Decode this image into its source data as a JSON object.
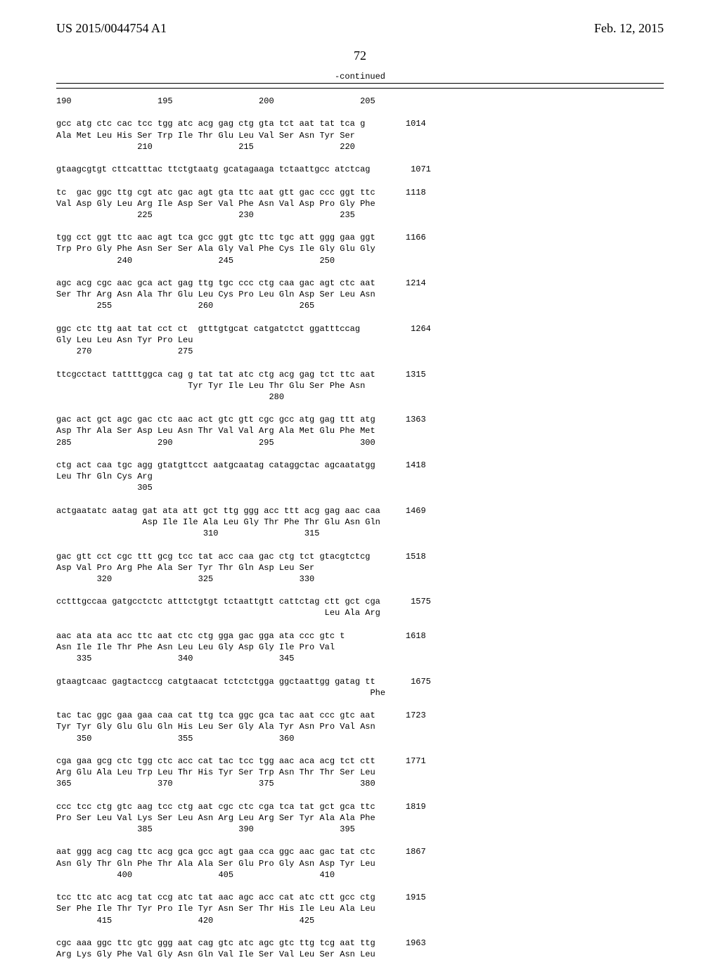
{
  "header": {
    "left": "US 2015/0044754 A1",
    "right": "Feb. 12, 2015"
  },
  "page_number": "72",
  "continued": "-continued",
  "sequence_text": "190                 195                 200                 205\n\ngcc atg ctc cac tcc tgg atc acg gag ctg gta tct aat tat tca g        1014\nAla Met Leu His Ser Trp Ile Thr Glu Leu Val Ser Asn Tyr Ser\n                210                 215                 220\n\ngtaagcgtgt cttcatttac ttctgtaatg gcatagaaga tctaattgcc atctcag        1071\n\ntc  gac ggc ttg cgt atc gac agt gta ttc aat gtt gac ccc ggt ttc      1118\nVal Asp Gly Leu Arg Ile Asp Ser Val Phe Asn Val Asp Pro Gly Phe\n                225                 230                 235\n\ntgg cct ggt ttc aac agt tca gcc ggt gtc ttc tgc att ggg gaa ggt      1166\nTrp Pro Gly Phe Asn Ser Ser Ala Gly Val Phe Cys Ile Gly Glu Gly\n            240                 245                 250\n\nagc acg cgc aac gca act gag ttg tgc ccc ctg caa gac agt ctc aat      1214\nSer Thr Arg Asn Ala Thr Glu Leu Cys Pro Leu Gln Asp Ser Leu Asn\n        255                 260                 265\n\nggc ctc ttg aat tat cct ct  gtttgtgcat catgatctct ggatttccag          1264\nGly Leu Leu Asn Tyr Pro Leu\n    270                 275\n\nttcgcctact tattttggca cag g tat tat atc ctg acg gag tct ttc aat      1315\n                          Tyr Tyr Ile Leu Thr Glu Ser Phe Asn\n                                          280\n\ngac act gct agc gac ctc aac act gtc gtt cgc gcc atg gag ttt atg      1363\nAsp Thr Ala Ser Asp Leu Asn Thr Val Val Arg Ala Met Glu Phe Met\n285                 290                 295                 300\n\nctg act caa tgc agg gtatgttcct aatgcaatag cataggctac agcaatatgg      1418\nLeu Thr Gln Cys Arg\n                305\n\nactgaatatc aatag gat ata att gct ttg ggg acc ttt acg gag aac caa     1469\n                 Asp Ile Ile Ala Leu Gly Thr Phe Thr Glu Asn Gln\n                             310                 315\n\ngac gtt cct cgc ttt gcg tcc tat acc caa gac ctg tct gtacgtctcg       1518\nAsp Val Pro Arg Phe Ala Ser Tyr Thr Gln Asp Leu Ser\n        320                 325                 330\n\ncctttgccaa gatgcctctc atttctgtgt tctaattgtt cattctag ctt gct cga      1575\n                                                     Leu Ala Arg\n\naac ata ata acc ttc aat ctc ctg gga gac gga ata ccc gtc t            1618\nAsn Ile Ile Thr Phe Asn Leu Leu Gly Asp Gly Ile Pro Val\n    335                 340                 345\n\ngtaagtcaac gagtactccg catgtaacat tctctctgga ggctaattgg gatag tt       1675\n                                                              Phe\n\ntac tac ggc gaa gaa caa cat ttg tca ggc gca tac aat ccc gtc aat      1723\nTyr Tyr Gly Glu Glu Gln His Leu Ser Gly Ala Tyr Asn Pro Val Asn\n    350                 355                 360\n\ncga gaa gcg ctc tgg ctc acc cat tac tcc tgg aac aca acg tct ctt      1771\nArg Glu Ala Leu Trp Leu Thr His Tyr Ser Trp Asn Thr Thr Ser Leu\n365                 370                 375                 380\n\nccc tcc ctg gtc aag tcc ctg aat cgc ctc cga tca tat gct gca ttc      1819\nPro Ser Leu Val Lys Ser Leu Asn Arg Leu Arg Ser Tyr Ala Ala Phe\n                385                 390                 395\n\naat ggg acg cag ttc acg gca gcc agt gaa cca ggc aac gac tat ctc      1867\nAsn Gly Thr Gln Phe Thr Ala Ala Ser Glu Pro Gly Asn Asp Tyr Leu\n            400                 405                 410\n\ntcc ttc atc acg tat ccg atc tat aac agc acc cat atc ctt gcc ctg      1915\nSer Phe Ile Thr Tyr Pro Ile Tyr Asn Ser Thr His Ile Leu Ala Leu\n        415                 420                 425\n\ncgc aaa ggc ttc gtc ggg aat cag gtc atc agc gtc ttg tcg aat ttg      1963\nArg Lys Gly Phe Val Gly Asn Gln Val Ile Ser Val Leu Ser Asn Leu"
}
